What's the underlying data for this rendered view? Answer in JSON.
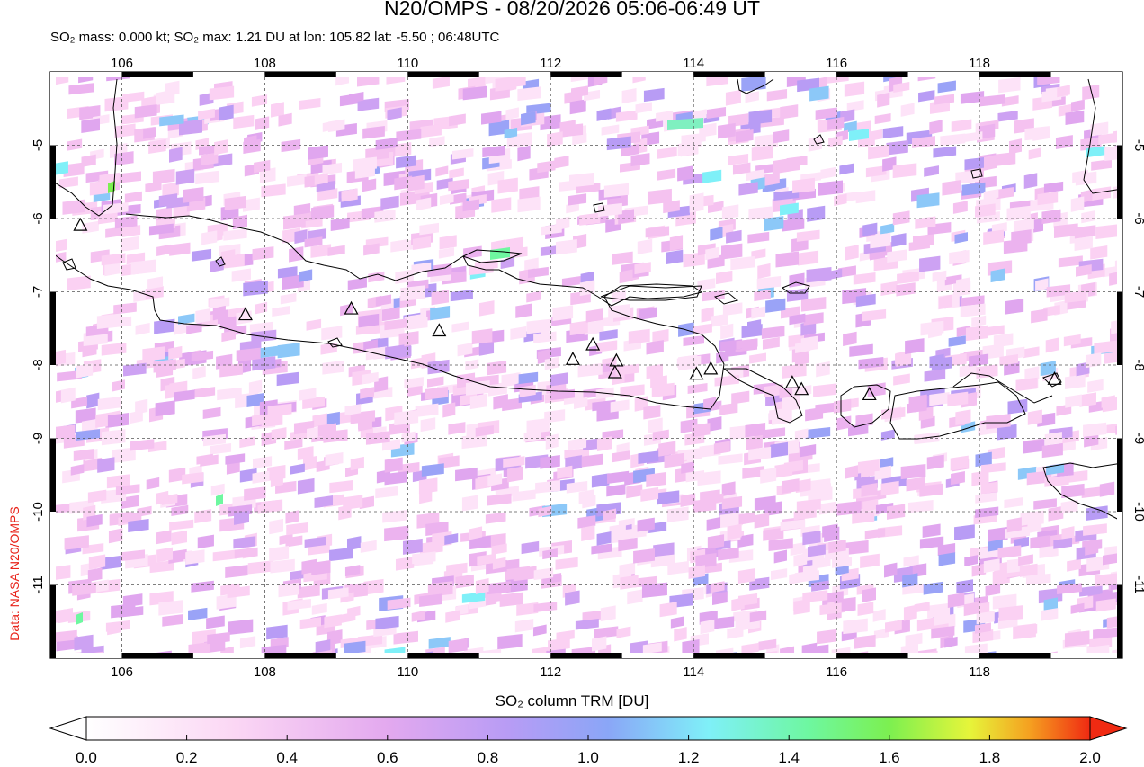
{
  "header": {
    "title": "N20/OMPS - 08/20/2026 05:06-06:49 UT",
    "subtitle": "SO₂ mass: 0.000 kt; SO₂ max: 1.21 DU at lon: 105.82 lat: -5.50 ; 06:48UTC"
  },
  "credit": "Data: NASA N20/OMPS",
  "map": {
    "lon_range": [
      105.0,
      120.0
    ],
    "lat_range": [
      -12.0,
      -4.0
    ],
    "lon_ticks": [
      "106",
      "108",
      "110",
      "112",
      "114",
      "116",
      "118"
    ],
    "lat_ticks": [
      "-5",
      "-6",
      "-7",
      "-8",
      "-9",
      "-10",
      "-11"
    ],
    "grid": "dashed",
    "volcanoes": [
      {
        "lon": 105.42,
        "lat": -6.1
      },
      {
        "lon": 107.73,
        "lat": -7.32
      },
      {
        "lon": 109.21,
        "lat": -7.24
      },
      {
        "lon": 110.44,
        "lat": -7.54
      },
      {
        "lon": 112.31,
        "lat": -7.93
      },
      {
        "lon": 112.59,
        "lat": -7.73
      },
      {
        "lon": 112.92,
        "lat": -7.95
      },
      {
        "lon": 112.9,
        "lat": -8.11
      },
      {
        "lon": 114.04,
        "lat": -8.13
      },
      {
        "lon": 114.24,
        "lat": -8.06
      },
      {
        "lon": 115.38,
        "lat": -8.25
      },
      {
        "lon": 115.51,
        "lat": -8.34
      },
      {
        "lon": 116.46,
        "lat": -8.41
      },
      {
        "lon": 119.05,
        "lat": -8.2
      }
    ]
  },
  "colorbar": {
    "label": "SO₂ column TRM [DU]",
    "range": [
      0.0,
      2.0
    ],
    "ticks": [
      "0.0",
      "0.2",
      "0.4",
      "0.6",
      "0.8",
      "1.0",
      "1.2",
      "1.4",
      "1.6",
      "1.8",
      "2.0"
    ]
  }
}
